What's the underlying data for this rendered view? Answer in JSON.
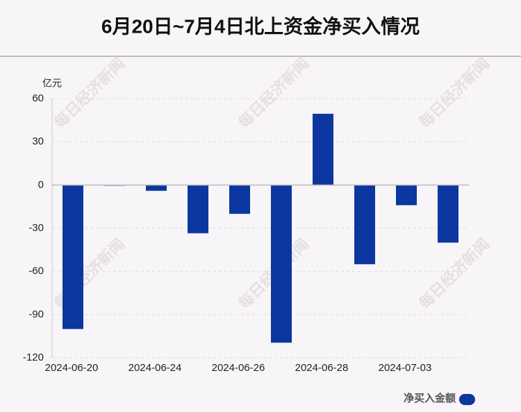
{
  "chart_data": {
    "type": "bar",
    "title": "6月20日~7月4日北上资金净买入情况",
    "y_label": "亿元",
    "categories": [
      "2024-06-20",
      null,
      "2024-06-24",
      null,
      "2024-06-26",
      null,
      "2024-06-28",
      null,
      "2024-07-03",
      null
    ],
    "series": [
      {
        "name": "净买入金额",
        "color": "#0c36a0",
        "values": [
          -100,
          -0.5,
          -4,
          -33.5,
          -20,
          -109.5,
          49.5,
          -55,
          -14,
          -40
        ]
      }
    ],
    "ylim": [
      -120,
      60
    ],
    "yticks": [
      -120,
      -90,
      -60,
      -30,
      0,
      30,
      60
    ],
    "grid": true,
    "watermark": "每日经济新闻"
  }
}
